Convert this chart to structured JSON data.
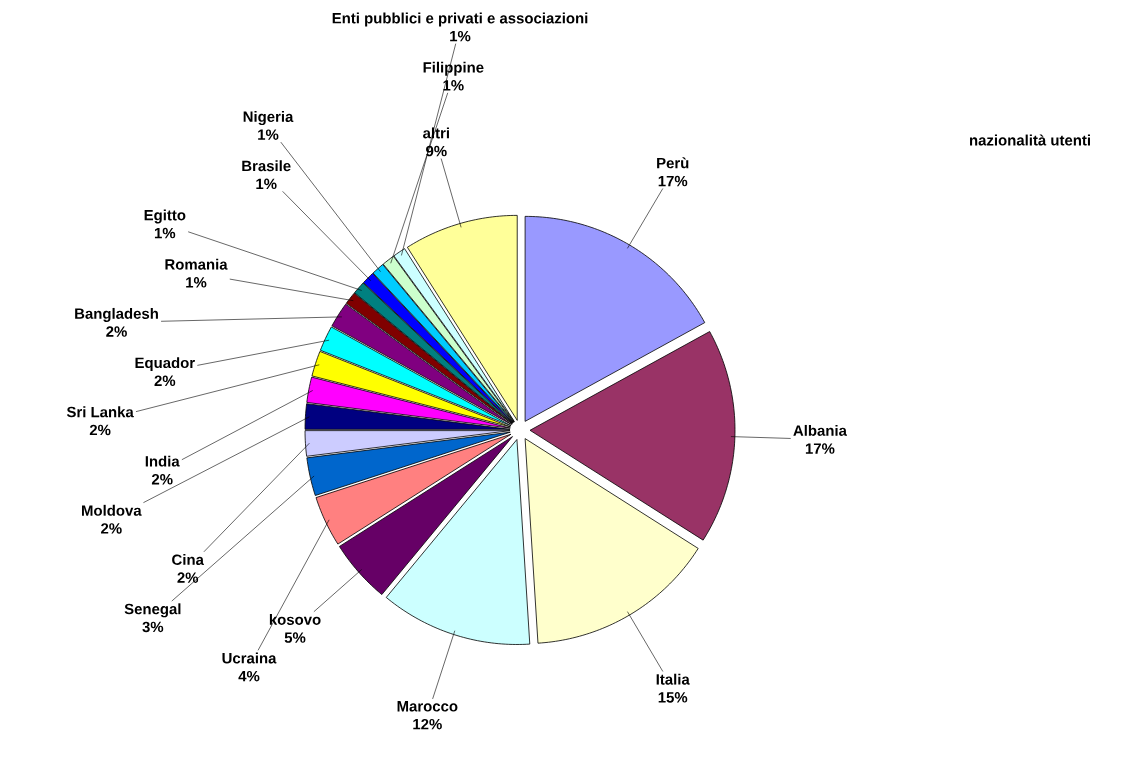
{
  "chart_data": {
    "type": "pie",
    "title": "nazionalità utenti",
    "categories": [
      "Perù",
      "Albania",
      "Italia",
      "Marocco",
      "kosovo",
      "Ucraina",
      "Senegal",
      "Cina",
      "Moldova",
      "India",
      "Sri Lanka",
      "Equador",
      "Bangladesh",
      "Romania",
      "Egitto",
      "Brasile",
      "Nigeria",
      "Filippine",
      "Enti pubblici e privati e associazioni",
      "altri"
    ],
    "values": [
      17,
      17,
      15,
      12,
      5,
      4,
      3,
      2,
      2,
      2,
      2,
      2,
      2,
      1,
      1,
      1,
      1,
      1,
      1,
      9
    ],
    "value_labels": [
      "17%",
      "17%",
      "15%",
      "12%",
      "5%",
      "4%",
      "3%",
      "2%",
      "2%",
      "2%",
      "2%",
      "2%",
      "2%",
      "1%",
      "1%",
      "1%",
      "1%",
      "1%",
      "1%",
      "9%"
    ],
    "colors": [
      "#9999ff",
      "#993366",
      "#ffffcc",
      "#ccffff",
      "#660066",
      "#ff8080",
      "#0066cc",
      "#ccccff",
      "#000080",
      "#ff00ff",
      "#ffff00",
      "#00ffff",
      "#800080",
      "#800000",
      "#008080",
      "#0000ff",
      "#00ccff",
      "#ccffcc",
      "#ccffff",
      "#ffff99"
    ]
  }
}
